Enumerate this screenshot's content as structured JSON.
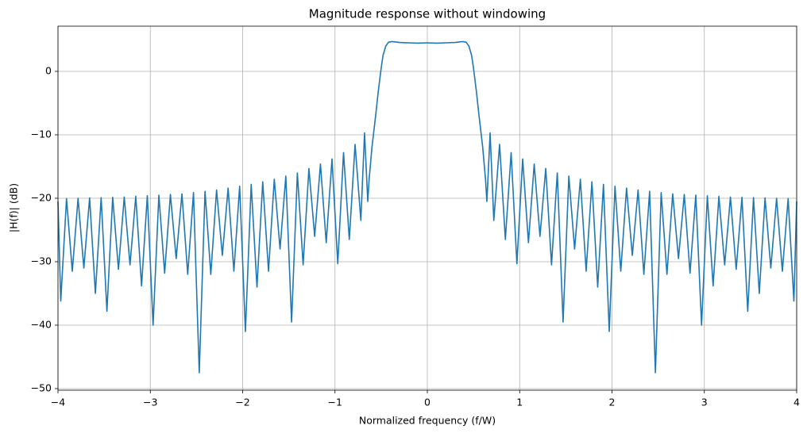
{
  "chart_data": {
    "type": "line",
    "title": "Magnitude response without windowing",
    "xlabel": "Normalized frequency (f/W)",
    "ylabel": "|H(f)| (dB)",
    "xlim": [
      -4,
      4
    ],
    "ylim": [
      -50.25,
      7.125
    ],
    "xticks": [
      {
        "value": -4,
        "label": "−4"
      },
      {
        "value": -3,
        "label": "−3"
      },
      {
        "value": -2,
        "label": "−2"
      },
      {
        "value": -1,
        "label": "−1"
      },
      0,
      1,
      2,
      3,
      4
    ],
    "yticks": [
      {
        "value": -50,
        "label": "−50"
      },
      {
        "value": -40,
        "label": "−40"
      },
      {
        "value": -30,
        "label": "−30"
      },
      {
        "value": -20,
        "label": "−20"
      },
      {
        "value": -10,
        "label": "−10"
      },
      0
    ],
    "grid": true,
    "x": [
      -4,
      -3.97,
      -3.9075,
      -3.845,
      -3.7825,
      -3.72,
      -3.6575,
      -3.595,
      -3.5325,
      -3.47,
      -3.4075,
      -3.345,
      -3.2825,
      -3.22,
      -3.1575,
      -3.095,
      -3.0325,
      -2.97,
      -2.9075,
      -2.845,
      -2.7825,
      -2.72,
      -2.6575,
      -2.595,
      -2.5325,
      -2.47,
      -2.4075,
      -2.345,
      -2.2825,
      -2.22,
      -2.1575,
      -2.095,
      -2.0325,
      -1.97,
      -1.9075,
      -1.845,
      -1.7825,
      -1.72,
      -1.6575,
      -1.595,
      -1.5325,
      -1.47,
      -1.4075,
      -1.345,
      -1.2825,
      -1.22,
      -1.1575,
      -1.095,
      -1.0325,
      -0.97,
      -0.9075,
      -0.845,
      -0.7825,
      -0.72,
      -0.68,
      -0.645,
      -0.63,
      -0.6,
      -0.56,
      -0.53,
      -0.5,
      -0.48,
      -0.45,
      -0.42,
      -0.38,
      -0.3,
      -0.2,
      -0.1,
      0,
      0.1,
      0.2,
      0.3,
      0.38,
      0.42,
      0.45,
      0.48,
      0.5,
      0.53,
      0.56,
      0.6,
      0.63,
      0.645,
      0.68,
      0.72,
      0.7825,
      0.845,
      0.9075,
      0.97,
      1.0325,
      1.095,
      1.1575,
      1.22,
      1.2825,
      1.345,
      1.4075,
      1.47,
      1.5325,
      1.595,
      1.6575,
      1.72,
      1.7825,
      1.845,
      1.9075,
      1.97,
      2.0325,
      2.095,
      2.1575,
      2.22,
      2.2825,
      2.345,
      2.4075,
      2.47,
      2.5325,
      2.595,
      2.6575,
      2.72,
      2.7825,
      2.845,
      2.9075,
      2.97,
      3.0325,
      3.095,
      3.1575,
      3.22,
      3.2825,
      3.345,
      3.4075,
      3.47,
      3.5325,
      3.595,
      3.6575,
      3.72,
      3.7825,
      3.845,
      3.9075,
      3.97,
      4
    ],
    "series": [
      {
        "color": "#1f77b4",
        "values": [
          -20.5,
          -36.2,
          -20.05,
          -31.5,
          -20,
          -31,
          -19.95,
          -35,
          -19.9,
          -37.8,
          -19.85,
          -31.2,
          -19.8,
          -30.5,
          -19.7,
          -33.8,
          -19.6,
          -40,
          -19.5,
          -31.8,
          -19.4,
          -29.5,
          -19.3,
          -32,
          -19.1,
          -47.5,
          -18.9,
          -32,
          -18.7,
          -29,
          -18.4,
          -31.5,
          -18.1,
          -41,
          -17.8,
          -34,
          -17.4,
          -31.5,
          -17,
          -28,
          -16.5,
          -39.5,
          -16,
          -30.5,
          -15.3,
          -26,
          -14.6,
          -27,
          -13.8,
          -30.3,
          -12.8,
          -26.5,
          -11.5,
          -23.5,
          -9.7,
          -20.5,
          -17,
          -12,
          -7,
          -3,
          0.5,
          2.5,
          4.0,
          4.6,
          4.7,
          4.55,
          4.5,
          4.45,
          4.5,
          4.45,
          4.5,
          4.55,
          4.7,
          4.6,
          4.0,
          2.5,
          0.5,
          -3,
          -7,
          -12,
          -17,
          -20.5,
          -9.7,
          -23.5,
          -11.5,
          -26.5,
          -12.8,
          -30.3,
          -13.8,
          -27,
          -14.6,
          -26,
          -15.3,
          -30.5,
          -16,
          -39.5,
          -16.5,
          -28,
          -17,
          -31.5,
          -17.4,
          -34,
          -17.8,
          -41,
          -18.1,
          -31.5,
          -18.4,
          -29,
          -18.7,
          -32,
          -18.9,
          -47.5,
          -19.1,
          -32,
          -19.3,
          -29.5,
          -19.4,
          -31.8,
          -19.5,
          -40,
          -19.6,
          -33.8,
          -19.7,
          -30.5,
          -19.8,
          -31.2,
          -19.85,
          -37.8,
          -19.9,
          -35,
          -19.95,
          -31,
          -20,
          -31.5,
          -20.05,
          -36.2,
          -20.5
        ]
      }
    ]
  }
}
